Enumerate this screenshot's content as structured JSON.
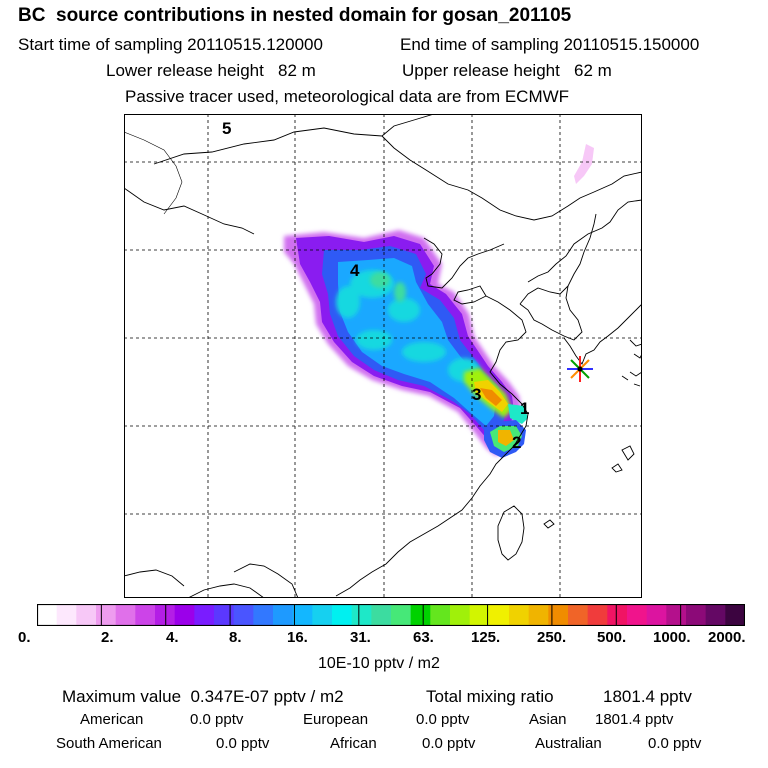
{
  "header": {
    "title": "BC  source contributions in nested domain for gosan_201105",
    "start_time": "Start time of sampling 20110515.120000",
    "end_time": "End time of sampling 20110515.150000",
    "lower_release": "Lower release height   82 m",
    "upper_release": "Upper release height   62 m",
    "tracer_note": "Passive tracer used, meteorological data are from ECMWF"
  },
  "map": {
    "labels": [
      "5",
      "4",
      "3",
      "1",
      "2"
    ],
    "receptor_marker": "star-marker",
    "colors": {
      "coast": "#000000",
      "grid": "#000000"
    }
  },
  "colorbar": {
    "ticks": [
      "0.",
      "2.",
      "4.",
      "8.",
      "16.",
      "31.",
      "63.",
      "125.",
      "250.",
      "500.",
      "1000.",
      "2000."
    ],
    "colors": [
      "#ffffff",
      "#fde8fd",
      "#f7c8f7",
      "#ee9cef",
      "#e070ea",
      "#cc44e8",
      "#b41ee6",
      "#9b00ea",
      "#7a1cff",
      "#5b38ff",
      "#4a55ff",
      "#3278ff",
      "#1e9aff",
      "#13b7ff",
      "#16d0f0",
      "#00f0f0",
      "#1ee8c8",
      "#3cdca0",
      "#46e878",
      "#00d200",
      "#64e61e",
      "#a0f00a",
      "#d2f500",
      "#f0f000",
      "#f0d200",
      "#f0b400",
      "#f08c00",
      "#f06428",
      "#f03c3c",
      "#f01464",
      "#f0148c",
      "#dc14a0",
      "#b4108c",
      "#8c0a78",
      "#640864",
      "#3c0440"
    ],
    "unit": "10E-10 pptv / m2"
  },
  "stats": {
    "max_value": "Maximum value  0.347E-07 pptv / m2",
    "total_label": "Total mixing ratio",
    "total_value": "1801.4 pptv",
    "american_label": "American",
    "american_value": "0.0 pptv",
    "european_label": "European",
    "european_value": "0.0 pptv",
    "asian_label": "Asian",
    "asian_value": "1801.4 pptv",
    "south_american_label": "South American",
    "south_american_value": "0.0 pptv",
    "african_label": "African",
    "african_value": "0.0 pptv",
    "australian_label": "Australian",
    "australian_value": "0.0 pptv"
  }
}
